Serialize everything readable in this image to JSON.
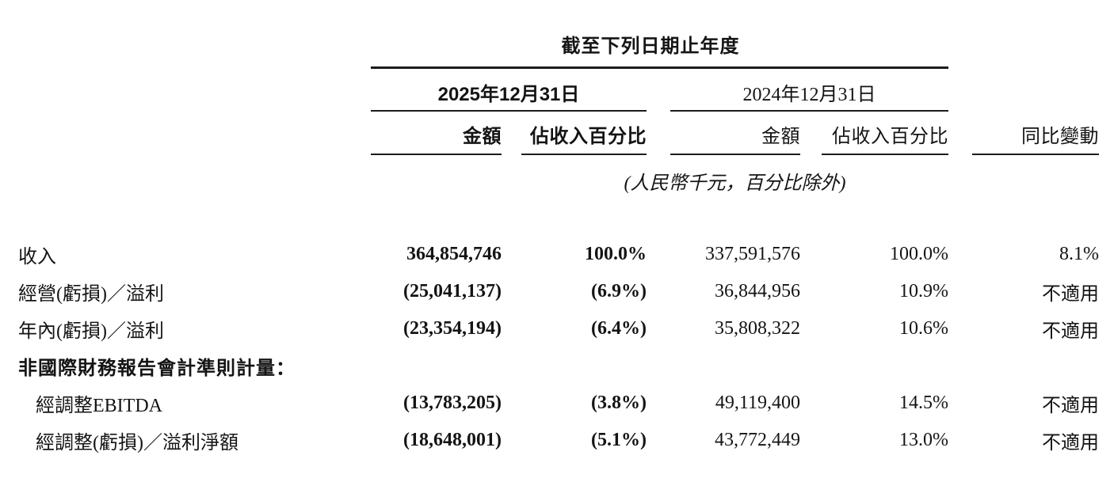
{
  "table": {
    "title": "截至下列日期止年度",
    "unit_note": "(人民幣千元，百分比除外)",
    "periods": [
      {
        "label": "2025年12月31日"
      },
      {
        "label": "2024年12月31日"
      }
    ],
    "subheaders": {
      "amount_2025": "金額",
      "pct_2025": "佔收入百分比",
      "amount_2024": "金額",
      "pct_2024": "佔收入百分比",
      "yoy": "同比變動"
    },
    "rows": [
      {
        "label": "收入",
        "section": false,
        "indent": false,
        "values": [
          "364,854,746",
          "100.0%",
          "337,591,576",
          "100.0%",
          "8.1%"
        ]
      },
      {
        "label": "經營(虧損)／溢利",
        "section": false,
        "indent": false,
        "values": [
          "(25,041,137)",
          "(6.9%)",
          "36,844,956",
          "10.9%",
          "不適用"
        ]
      },
      {
        "label": "年內(虧損)／溢利",
        "section": false,
        "indent": false,
        "values": [
          "(23,354,194)",
          "(6.4%)",
          "35,808,322",
          "10.6%",
          "不適用"
        ]
      },
      {
        "label": "非國際財務報告會計準則計量：",
        "section": true,
        "indent": false,
        "values": [
          "",
          "",
          "",
          "",
          ""
        ]
      },
      {
        "label": "經調整EBITDA",
        "section": false,
        "indent": true,
        "values": [
          "(13,783,205)",
          "(3.8%)",
          "49,119,400",
          "14.5%",
          "不適用"
        ]
      },
      {
        "label": "經調整(虧損)／溢利淨額",
        "section": false,
        "indent": true,
        "values": [
          "(18,648,001)",
          "(5.1%)",
          "43,772,449",
          "13.0%",
          "不適用"
        ]
      }
    ],
    "colors": {
      "text": "#141414",
      "rule": "#1c1c1c",
      "background": "#ffffff"
    }
  }
}
